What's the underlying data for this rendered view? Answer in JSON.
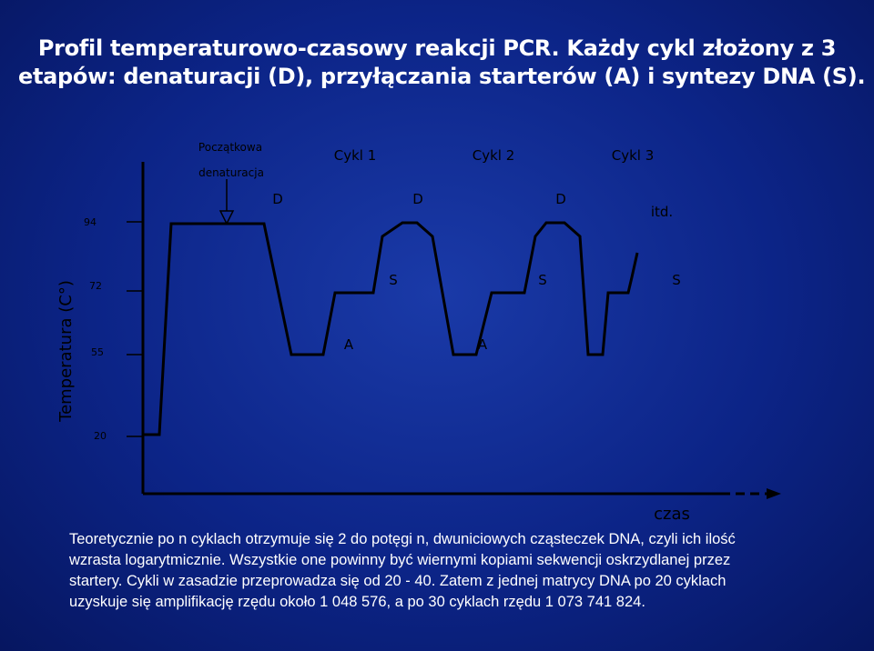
{
  "title": {
    "line1": "Profil temperaturowo-czasowy reakcji PCR. Każdy cykl złożony z 3",
    "line2": "etapów: denaturacji (D), przyłączania starterów (A) i syntezy DNA (S)."
  },
  "axes": {
    "ylabel": "Temperatura (C°)",
    "xlabel": "czas",
    "yticks": [
      "94",
      "72",
      "55",
      "20"
    ]
  },
  "labels": {
    "initial_top": "Początkowa",
    "initial_bottom": "denaturacja",
    "cycle1": "Cykl 1",
    "cycle2": "Cykl 2",
    "cycle3": "Cykl 3",
    "d1": "D",
    "d2": "D",
    "d3": "D",
    "s1": "S",
    "s2": "S",
    "s3": "S",
    "a1": "A",
    "a2": "A",
    "etc": "itd."
  },
  "description": {
    "line1": "Teoretycznie po n cyklach otrzymuje się 2 do potęgi n, dwuniciowych cząsteczek DNA, czyli ich ilość",
    "line2": "wzrasta logarytmicznie. Wszystkie one powinny być wiernymi kopiami sekwencji oskrzydlanej przez",
    "line3": "startery. Cykli w zasadzie przeprowadza się od 20 - 40. Zatem z jednej matrycy DNA po 20 cyklach",
    "line4": "uzyskuje się amplifikację rzędu około 1 048 576, a po 30 cyklach rzędu 1 073 741 824."
  }
}
